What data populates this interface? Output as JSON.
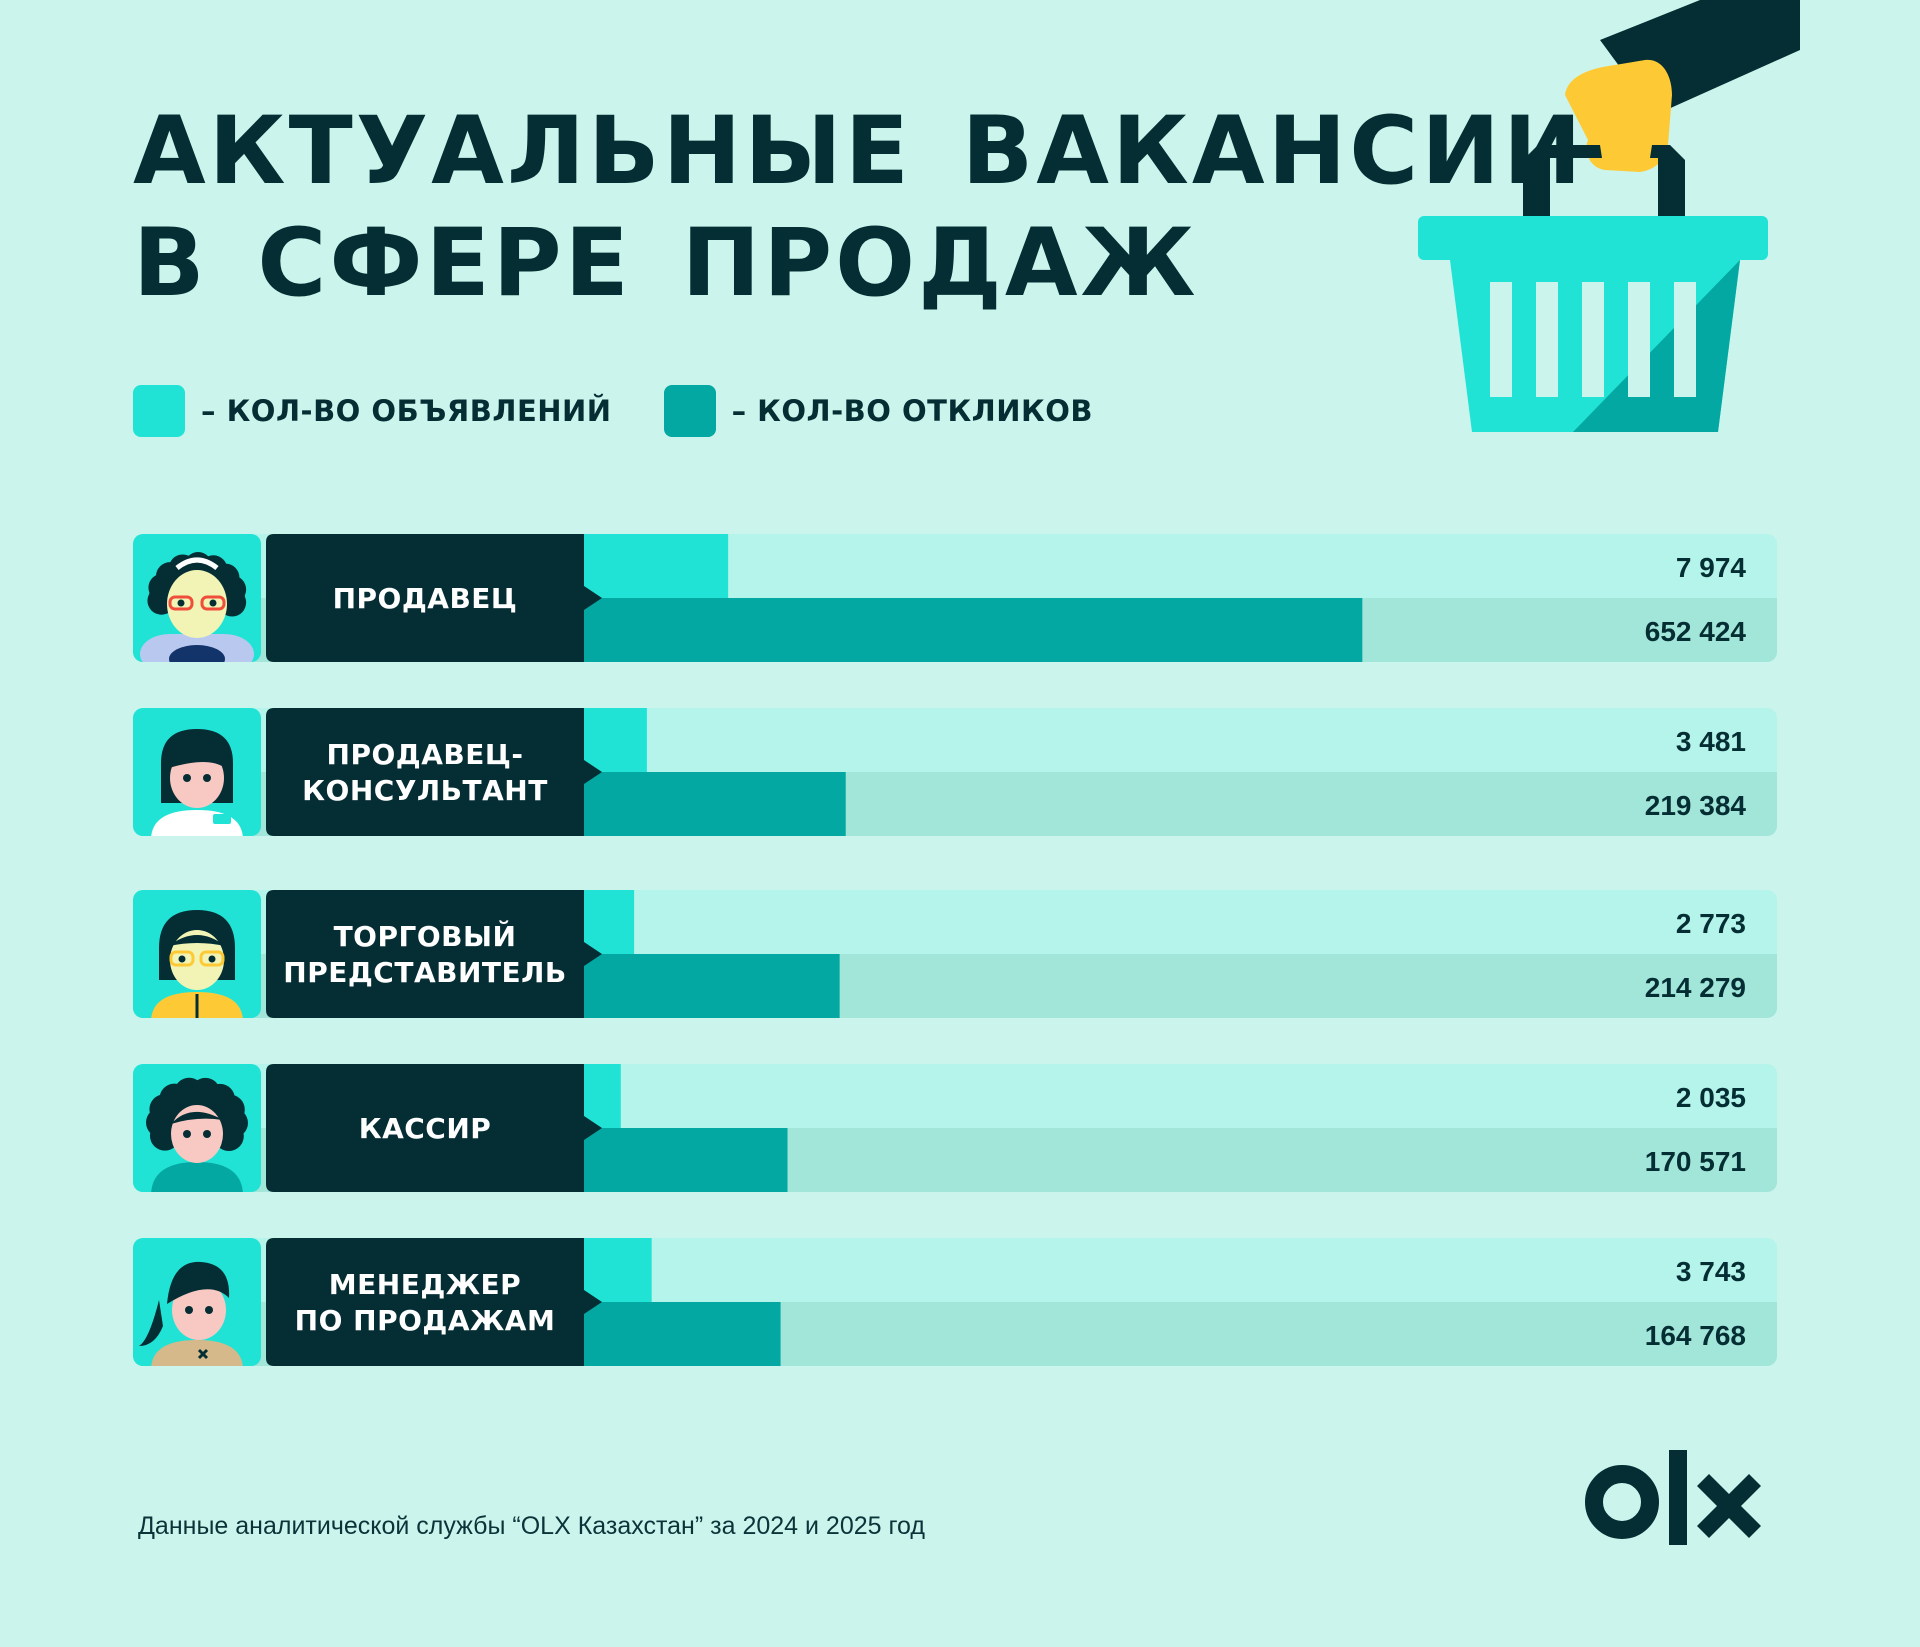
{
  "title": {
    "line1": "АКТУАЛЬНЫЕ ВАКАНСИИ",
    "line2": "В СФЕРЕ ПРОДАЖ"
  },
  "legend": {
    "ads": "– КОЛ-ВО ОБЪЯВЛЕНИЙ",
    "responses": "– КОЛ-ВО ОТКЛИКОВ"
  },
  "colors": {
    "ads_bar": "#20e3d6",
    "ads_track": "#b4f4ea",
    "responses_bar": "#03a8a2",
    "responses_track": "#a2e5d9",
    "label_bg": "#052e34",
    "background": "#cbf5ec",
    "accent_yellow": "#fdca35"
  },
  "chart_data": {
    "type": "bar",
    "orientation": "horizontal",
    "categories": [
      "ПРОДАВЕЦ",
      "ПРОДАВЕЦ-КОНСУЛЬТАНТ",
      "ТОРГОВЫЙ ПРЕДСТАВИТЕЛЬ",
      "КАССИР",
      "МЕНЕДЖЕР ПО ПРОДАЖАМ"
    ],
    "series": [
      {
        "name": "– КОЛ-ВО ОБЪЯВЛЕНИЙ",
        "values": [
          7974,
          3481,
          2773,
          2035,
          3743
        ],
        "labels": [
          "7 974",
          "3 481",
          "2 773",
          "2 035",
          "3 743"
        ],
        "scale_max": 66000
      },
      {
        "name": "– КОЛ-ВО ОТКЛИКОВ",
        "values": [
          652424,
          219384,
          214279,
          170571,
          164768
        ],
        "labels": [
          "652 424",
          "219 384",
          "214 279",
          "170 571",
          "164 768"
        ],
        "scale_max": 1000000
      }
    ],
    "rows": [
      {
        "label_lines": [
          "ПРОДАВЕЦ"
        ],
        "avatar": "saleswoman-avatar"
      },
      {
        "label_lines": [
          "ПРОДАВЕЦ-",
          "КОНСУЛЬТАНТ"
        ],
        "avatar": "consultant-avatar"
      },
      {
        "label_lines": [
          "ТОРГОВЫЙ",
          "ПРЕДСТАВИТЕЛЬ"
        ],
        "avatar": "sales-rep-avatar"
      },
      {
        "label_lines": [
          "КАССИР"
        ],
        "avatar": "cashier-avatar"
      },
      {
        "label_lines": [
          "МЕНЕДЖЕР",
          "ПО ПРОДАЖАМ"
        ],
        "avatar": "sales-manager-avatar"
      }
    ]
  },
  "footer": {
    "note": "Данные аналитической службы “OLX Казахстан” за 2024 и 2025 год",
    "logo_text": "OLX"
  }
}
